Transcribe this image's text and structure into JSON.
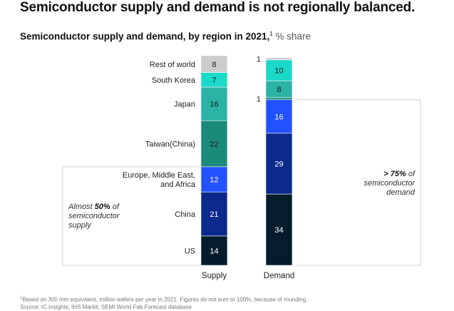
{
  "headline": "Semiconductor supply and demand is not regionally balanced.",
  "subtitle": {
    "main": "Semiconductor supply and demand, by region in 2021,",
    "footnote_mark": "1",
    "unit": "% share"
  },
  "chart_data": {
    "type": "bar",
    "stacked": true,
    "title": "Semiconductor supply and demand, by region in 2021, % share",
    "categories": [
      "Supply",
      "Demand"
    ],
    "series": [
      {
        "name": "US",
        "color": "#051c2c",
        "label_color": "#ffffff",
        "values": [
          14,
          34
        ]
      },
      {
        "name": "China",
        "color": "#0c2a8c",
        "label_color": "#ffffff",
        "values": [
          21,
          29
        ]
      },
      {
        "name": "Europe, Middle East, and Africa",
        "label_lines": [
          "Europe, Middle East,",
          "and Africa"
        ],
        "color": "#2251ff",
        "label_color": "#ffffff",
        "values": [
          12,
          16
        ]
      },
      {
        "name": "Taiwan(China)",
        "color": "#1b8a7a",
        "label_color": "#1a1a1a",
        "values": [
          22,
          1
        ]
      },
      {
        "name": "Japan",
        "color": "#2bb3a6",
        "label_color": "#1a1a1a",
        "values": [
          16,
          8
        ]
      },
      {
        "name": "South Korea",
        "color": "#1ad9c8",
        "label_color": "#1a1a1a",
        "values": [
          7,
          10
        ]
      },
      {
        "name": "Rest of world",
        "color": "#cccccc",
        "label_color": "#1a1a1a",
        "values": [
          8,
          1
        ]
      }
    ],
    "ylim": [
      0,
      100
    ],
    "grid": false,
    "annotations": {
      "supply": {
        "lines": [
          "Almost ",
          "50%",
          " of",
          "semiconductor",
          "supply"
        ]
      },
      "demand": {
        "lines": [
          "> 75%",
          " of",
          "semiconductor",
          "demand"
        ]
      }
    }
  },
  "footer": {
    "note_mark": "1",
    "note": "Based on 300 mm equivalent, million wafers per year in 2021. Figures do not sum to 100%, because of rounding.",
    "source": "Source: IC Insights; IHS Markit; SEMI World Fab Forecast database"
  }
}
